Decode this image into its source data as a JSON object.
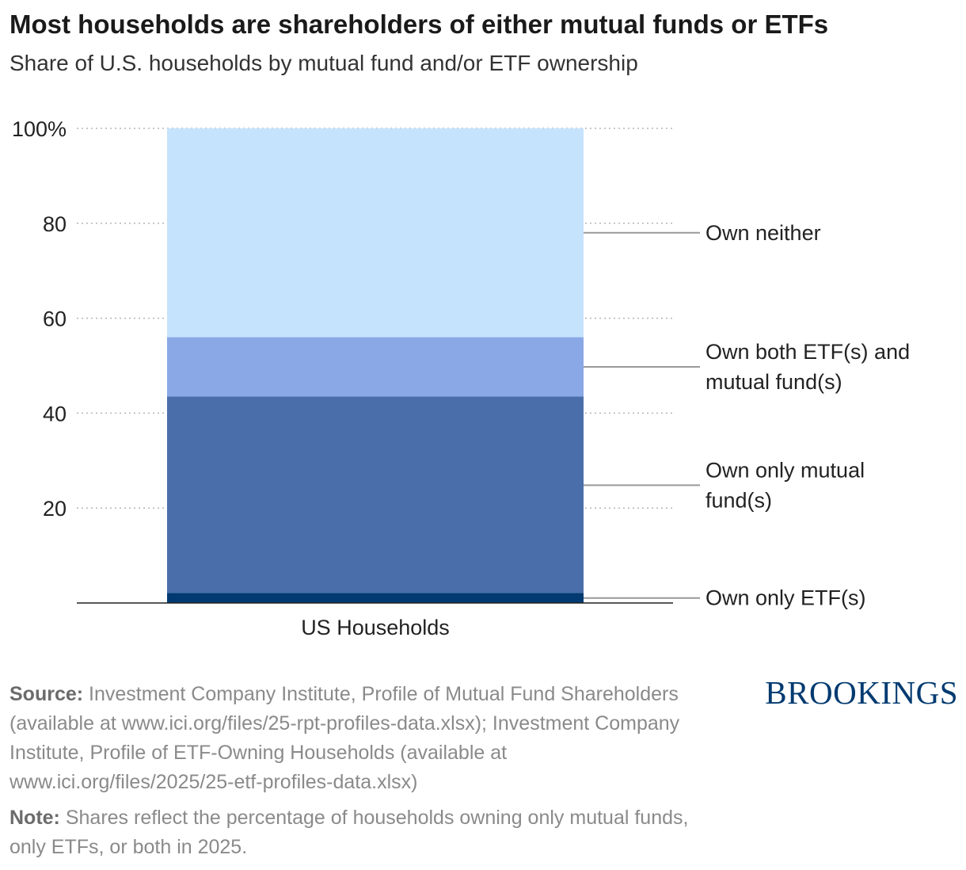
{
  "title": "Most households are shareholders of either mutual funds or ETFs",
  "subtitle": "Share of U.S. households by mutual fund and/or ETF ownership",
  "chart_data": {
    "type": "bar",
    "stacked": true,
    "categories": [
      "US Households"
    ],
    "series": [
      {
        "name": "Own only ETF(s)",
        "label_lines": [
          "Own only ETF(s)"
        ],
        "values": [
          2.1
        ],
        "color": "#003a70"
      },
      {
        "name": "Own only mutual fund(s)",
        "label_lines": [
          "Own only mutual",
          "fund(s)"
        ],
        "values": [
          41.4
        ],
        "color": "#4a6eaa"
      },
      {
        "name": "Own both ETF(s) and mutual fund(s)",
        "label_lines": [
          "Own both ETF(s) and",
          "mutual fund(s)"
        ],
        "values": [
          12.5
        ],
        "color": "#8aa8e6"
      },
      {
        "name": "Own neither",
        "label_lines": [
          "Own neither"
        ],
        "values": [
          44.0
        ],
        "color": "#c6e3fd"
      }
    ],
    "y_ticks": [
      {
        "value": 100,
        "label": "100%"
      },
      {
        "value": 80,
        "label": "80"
      },
      {
        "value": 60,
        "label": "60"
      },
      {
        "value": 40,
        "label": "40"
      },
      {
        "value": 20,
        "label": "20"
      }
    ],
    "ylim": [
      0,
      100
    ],
    "grid": true,
    "legend": "direct labels to the right of the bar"
  },
  "source": {
    "label": "Source:",
    "text": "Investment Company Institute, Profile of Mutual Fund Shareholders (available at  www.ici.org/files/25-rpt-profiles-data.xlsx); Investment Company Institute, Profile of ETF-Owning Households (available at www.ici.org/files/2025/25-etf-profiles-data.xlsx)"
  },
  "note": {
    "label": "Note:",
    "text": "Shares reflect the percentage of households owning only mutual funds, only ETFs, or both in 2025."
  },
  "brand": "BROOKINGS"
}
